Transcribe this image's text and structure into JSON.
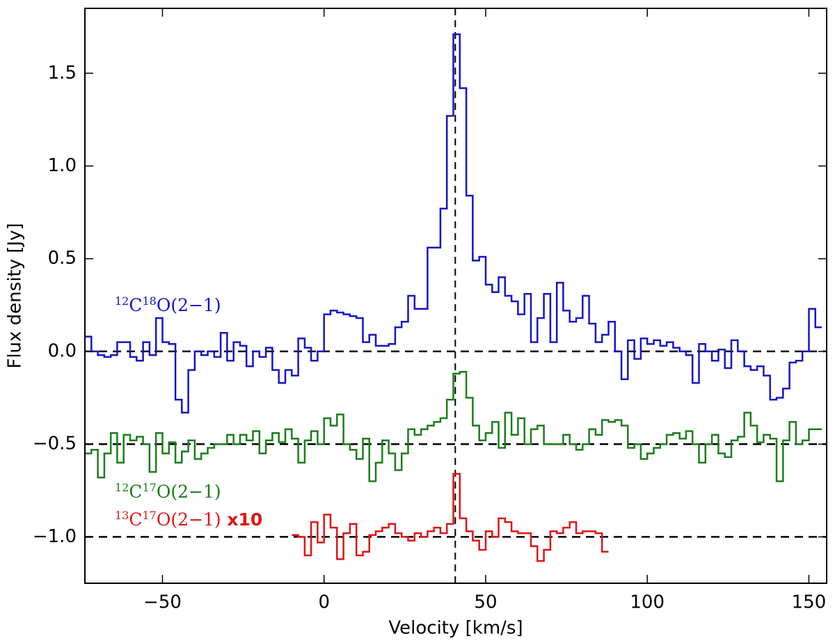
{
  "chart_data": {
    "type": "step",
    "x_label": "Velocity [km/s]",
    "y_label": "Flux density [Jy]",
    "xlim": [
      -74,
      155.5
    ],
    "ylim": [
      -1.25,
      1.85
    ],
    "xticks": [
      {
        "value": -50,
        "label": "−50"
      },
      0,
      50,
      100,
      150
    ],
    "yticks": [
      {
        "value": -1,
        "label": "−1.0"
      },
      {
        "value": -0.5,
        "label": "−0.5"
      },
      {
        "value": 0,
        "label": "0.0"
      },
      {
        "value": 0.5,
        "label": "0.5"
      },
      {
        "value": 1,
        "label": "1.0"
      },
      {
        "value": 1.5,
        "label": "1.5"
      }
    ],
    "hlines": [
      0,
      -0.5,
      -1
    ],
    "vline": 40.6,
    "series": [
      {
        "name": "12C18O(2−1)",
        "color": "#1414c8",
        "label_parts": [
          {
            "text": "12",
            "sup": true
          },
          {
            "text": "C"
          },
          {
            "text": "18",
            "sup": true
          },
          {
            "text": "O(2−1)"
          }
        ],
        "x": [
          -73,
          -71,
          -69,
          -67,
          -65,
          -63,
          -61,
          -59,
          -57,
          -55,
          -53,
          -51,
          -49,
          -47,
          -45,
          -43,
          -41,
          -39,
          -37,
          -35,
          -33,
          -31,
          -29,
          -27,
          -25,
          -23,
          -21,
          -19,
          -17,
          -15,
          -13,
          -11,
          -9,
          -7,
          -5,
          -3,
          -1,
          1,
          3,
          5,
          7,
          9,
          11,
          13,
          15,
          17,
          19,
          21,
          23,
          25,
          27,
          29,
          31,
          33,
          35,
          37,
          39,
          41,
          43,
          45,
          47,
          49,
          51,
          53,
          55,
          57,
          59,
          61,
          63,
          65,
          67,
          69,
          71,
          73,
          75,
          77,
          79,
          81,
          83,
          85,
          87,
          89,
          91,
          93,
          95,
          97,
          99,
          101,
          103,
          105,
          107,
          109,
          111,
          113,
          115,
          117,
          119,
          121,
          123,
          125,
          127,
          129,
          131,
          133,
          135,
          137,
          139,
          141,
          143,
          145,
          147,
          149,
          151,
          153
        ],
        "values": [
          0.08,
          0.0,
          -0.02,
          -0.03,
          -0.02,
          0.05,
          0.05,
          -0.03,
          -0.05,
          0.05,
          -0.02,
          0.18,
          0.05,
          0.04,
          -0.26,
          -0.33,
          -0.1,
          0.0,
          -0.02,
          0.0,
          -0.03,
          0.1,
          -0.05,
          0.05,
          0.03,
          -0.08,
          0.0,
          -0.03,
          0.02,
          -0.1,
          -0.17,
          -0.1,
          -0.13,
          0.07,
          0.02,
          -0.05,
          0.0,
          0.2,
          0.22,
          0.21,
          0.2,
          0.19,
          0.18,
          0.05,
          0.09,
          0.03,
          0.03,
          0.04,
          0.13,
          0.16,
          0.3,
          0.23,
          0.23,
          0.56,
          0.56,
          0.77,
          1.27,
          1.71,
          1.42,
          0.84,
          0.49,
          0.51,
          0.36,
          0.32,
          0.4,
          0.3,
          0.27,
          0.2,
          0.31,
          0.05,
          0.18,
          0.31,
          0.05,
          0.37,
          0.22,
          0.16,
          0.18,
          0.3,
          0.15,
          0.05,
          0.09,
          0.16,
          0.0,
          -0.15,
          0.06,
          -0.04,
          0.07,
          0.04,
          0.06,
          0.03,
          0.05,
          0.02,
          0.0,
          -0.02,
          -0.17,
          0.04,
          0.0,
          -0.05,
          0.01,
          -0.09,
          0.06,
          0.0,
          -0.08,
          -0.1,
          -0.08,
          -0.13,
          -0.26,
          -0.25,
          -0.2,
          -0.06,
          -0.05,
          0.0,
          0.23,
          0.13
        ]
      },
      {
        "name": "12C17O(2−1)",
        "color": "#1a7d1a",
        "label_parts": [
          {
            "text": "12",
            "sup": true
          },
          {
            "text": "C"
          },
          {
            "text": "17",
            "sup": true
          },
          {
            "text": "O(2−1)"
          }
        ],
        "x": [
          -73,
          -71,
          -69,
          -67,
          -65,
          -63,
          -61,
          -59,
          -57,
          -55,
          -53,
          -51,
          -49,
          -47,
          -45,
          -43,
          -41,
          -39,
          -37,
          -35,
          -33,
          -31,
          -29,
          -27,
          -25,
          -23,
          -21,
          -19,
          -17,
          -15,
          -13,
          -11,
          -9,
          -7,
          -5,
          -3,
          -1,
          1,
          3,
          5,
          7,
          9,
          11,
          13,
          15,
          17,
          19,
          21,
          23,
          25,
          27,
          29,
          31,
          33,
          35,
          37,
          39,
          41,
          43,
          45,
          47,
          49,
          51,
          53,
          55,
          57,
          59,
          61,
          63,
          65,
          67,
          69,
          71,
          73,
          75,
          77,
          79,
          81,
          83,
          85,
          87,
          89,
          91,
          93,
          95,
          97,
          99,
          101,
          103,
          105,
          107,
          109,
          111,
          113,
          115,
          117,
          119,
          121,
          123,
          125,
          127,
          129,
          131,
          133,
          135,
          137,
          139,
          141,
          143,
          145,
          147,
          149,
          151,
          153
        ],
        "values": [
          -0.55,
          -0.53,
          -0.68,
          -0.55,
          -0.44,
          -0.6,
          -0.45,
          -0.48,
          -0.46,
          -0.5,
          -0.65,
          -0.44,
          -0.55,
          -0.49,
          -0.6,
          -0.54,
          -0.48,
          -0.58,
          -0.55,
          -0.52,
          -0.5,
          -0.5,
          -0.45,
          -0.5,
          -0.45,
          -0.48,
          -0.43,
          -0.55,
          -0.48,
          -0.44,
          -0.49,
          -0.42,
          -0.47,
          -0.6,
          -0.48,
          -0.43,
          -0.5,
          -0.36,
          -0.4,
          -0.34,
          -0.5,
          -0.53,
          -0.58,
          -0.47,
          -0.7,
          -0.6,
          -0.48,
          -0.55,
          -0.64,
          -0.55,
          -0.42,
          -0.45,
          -0.42,
          -0.4,
          -0.38,
          -0.36,
          -0.26,
          -0.12,
          -0.11,
          -0.25,
          -0.4,
          -0.48,
          -0.44,
          -0.38,
          -0.52,
          -0.33,
          -0.45,
          -0.36,
          -0.5,
          -0.42,
          -0.4,
          -0.5,
          -0.5,
          -0.5,
          -0.45,
          -0.5,
          -0.53,
          -0.5,
          -0.42,
          -0.45,
          -0.37,
          -0.38,
          -0.37,
          -0.4,
          -0.52,
          -0.5,
          -0.58,
          -0.55,
          -0.52,
          -0.5,
          -0.45,
          -0.44,
          -0.47,
          -0.43,
          -0.5,
          -0.6,
          -0.5,
          -0.45,
          -0.55,
          -0.57,
          -0.48,
          -0.46,
          -0.33,
          -0.4,
          -0.49,
          -0.45,
          -0.47,
          -0.7,
          -0.48,
          -0.38,
          -0.5,
          -0.48,
          -0.42,
          -0.42
        ]
      },
      {
        "name": "13C17O(2−1) x10",
        "color": "#e01414",
        "label_parts": [
          {
            "text": "13",
            "sup": true
          },
          {
            "text": "C"
          },
          {
            "text": "17",
            "sup": true
          },
          {
            "text": "O(2−1)"
          },
          {
            "text": " x10",
            "bold": true
          }
        ],
        "x": [
          -9,
          -7,
          -5,
          -3,
          -1,
          1,
          3,
          5,
          7,
          9,
          11,
          13,
          15,
          17,
          19,
          21,
          23,
          25,
          27,
          29,
          31,
          33,
          35,
          37,
          39,
          41,
          43,
          45,
          47,
          49,
          51,
          53,
          55,
          57,
          59,
          61,
          63,
          65,
          67,
          69,
          71,
          73,
          75,
          77,
          79,
          81,
          83,
          85,
          87
        ],
        "values": [
          -0.99,
          -1.0,
          -1.1,
          -0.92,
          -1.03,
          -0.88,
          -0.95,
          -1.12,
          -0.98,
          -0.93,
          -1.1,
          -1.08,
          -0.99,
          -0.97,
          -0.95,
          -0.93,
          -0.98,
          -1.0,
          -1.02,
          -0.98,
          -1.0,
          -0.97,
          -0.95,
          -0.98,
          -0.93,
          -0.66,
          -0.9,
          -0.97,
          -1.02,
          -1.07,
          -0.97,
          -1.0,
          -0.9,
          -0.92,
          -0.97,
          -0.98,
          -0.98,
          -1.05,
          -1.13,
          -1.07,
          -0.97,
          -0.98,
          -0.95,
          -0.92,
          -0.98,
          -0.97,
          -0.97,
          -0.98,
          -1.08
        ]
      }
    ]
  }
}
